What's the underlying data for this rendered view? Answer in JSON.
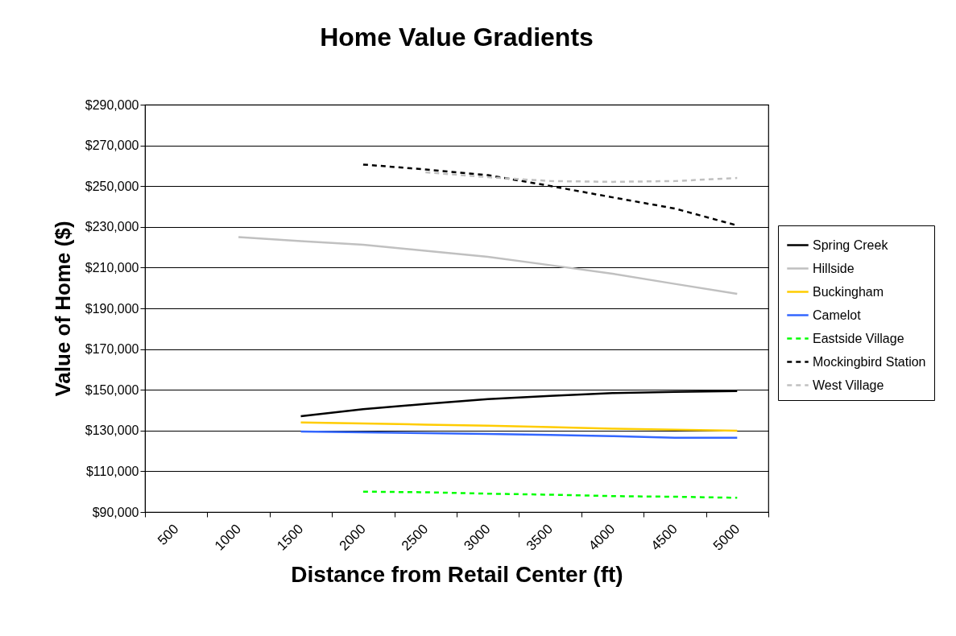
{
  "chart_data": {
    "type": "line",
    "title": "Home Value Gradients",
    "xlabel": "Distance from Retail Center (ft)",
    "ylabel": "Value of Home ($)",
    "categories": [
      "500",
      "1000",
      "1500",
      "2000",
      "2500",
      "3000",
      "3500",
      "4000",
      "4500",
      "5000"
    ],
    "ylim": [
      90000,
      290000
    ],
    "yticks": [
      {
        "value": 90000,
        "label": "$90,000"
      },
      {
        "value": 110000,
        "label": "$110,000"
      },
      {
        "value": 130000,
        "label": "$130,000"
      },
      {
        "value": 150000,
        "label": "$150,000"
      },
      {
        "value": 170000,
        "label": "$170,000"
      },
      {
        "value": 190000,
        "label": "$190,000"
      },
      {
        "value": 210000,
        "label": "$210,000"
      },
      {
        "value": 230000,
        "label": "$230,000"
      },
      {
        "value": 250000,
        "label": "$250,000"
      },
      {
        "value": 270000,
        "label": "$270,000"
      },
      {
        "value": 290000,
        "label": "$290,000"
      }
    ],
    "grid": "y",
    "legend": "right",
    "marker": "none",
    "series": [
      {
        "name": "Spring Creek",
        "color": "#000000",
        "line_style": "solid",
        "values": [
          null,
          null,
          137000,
          140500,
          143100,
          145400,
          147000,
          148400,
          149000,
          149400
        ]
      },
      {
        "name": "Hillside",
        "color": "#c0c0c0",
        "line_style": "solid",
        "values": [
          null,
          225000,
          223000,
          221200,
          218300,
          215300,
          211200,
          207000,
          202000,
          197100
        ]
      },
      {
        "name": "Buckingham",
        "color": "#ffcc00",
        "line_style": "solid",
        "values": [
          null,
          null,
          134000,
          133500,
          132900,
          132400,
          131700,
          130900,
          130400,
          129900
        ]
      },
      {
        "name": "Camelot",
        "color": "#3366ff",
        "line_style": "solid",
        "values": [
          null,
          null,
          129500,
          129100,
          128700,
          128300,
          127800,
          127300,
          126500,
          126500
        ]
      },
      {
        "name": "Eastside Village",
        "color": "#00ff00",
        "line_style": "dashed",
        "values": [
          null,
          null,
          null,
          100000,
          99700,
          99000,
          98500,
          97800,
          97500,
          97000
        ]
      },
      {
        "name": "Mockingbird Station",
        "color": "#000000",
        "line_style": "dashed",
        "values": [
          null,
          null,
          null,
          260600,
          258200,
          255400,
          250100,
          244500,
          239000,
          230700
        ]
      },
      {
        "name": "West Village",
        "color": "#c0c0c0",
        "line_style": "dashed",
        "values": [
          null,
          null,
          null,
          null,
          256800,
          254400,
          252500,
          252100,
          252500,
          254000
        ]
      }
    ]
  }
}
